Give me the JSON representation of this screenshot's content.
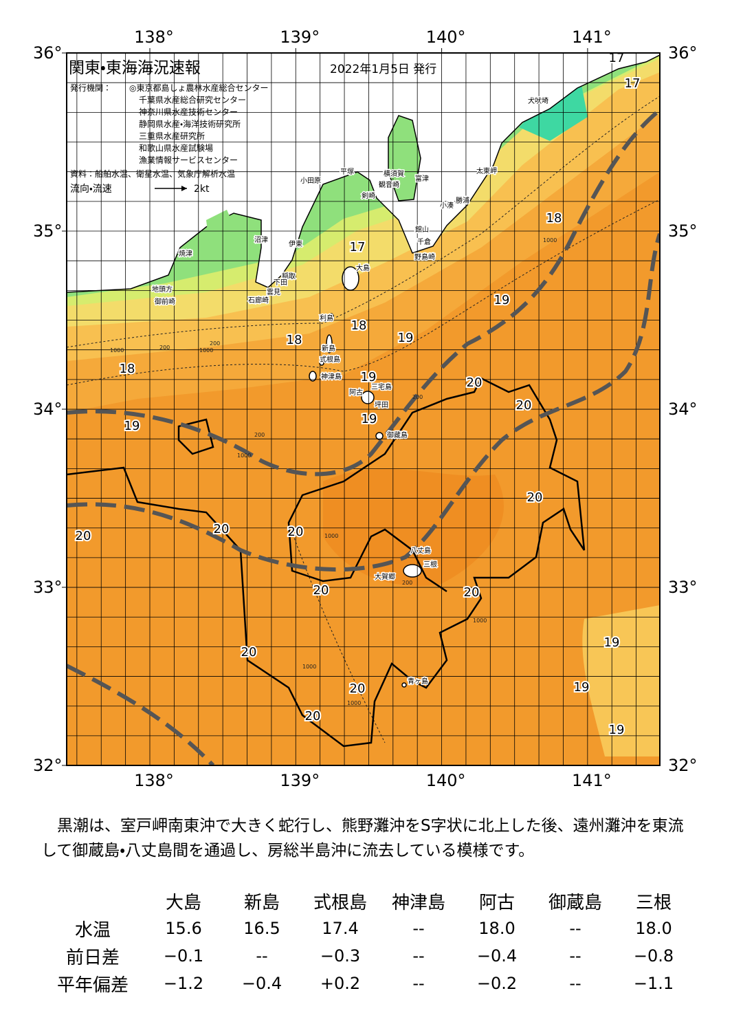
{
  "header": {
    "title": "関東・東海海況速報",
    "date": "2022年1月5日 発行",
    "agency_label": "発行機関：",
    "agencies": [
      "◎東京都島しょ農林水産総合センター",
      "千葉県水産総合研究センター",
      "神奈川県水産技術センター",
      "静岡県水産・海洋技術研究所",
      "三重県水産研究所",
      "和歌山県水産試験場",
      "漁業情報サービスセンター"
    ],
    "source": "資料：船舶水温、衛星水温、気象庁解析水温",
    "current_label": "流向・流速",
    "current_scale": "2kt"
  },
  "map": {
    "lon_ticks": [
      {
        "value": 138,
        "label": "138°"
      },
      {
        "value": 139,
        "label": "139°"
      },
      {
        "value": 140,
        "label": "140°"
      },
      {
        "value": 141,
        "label": "141°"
      }
    ],
    "lat_ticks": [
      {
        "value": 32,
        "label": "32°"
      },
      {
        "value": 33,
        "label": "33°"
      },
      {
        "value": 34,
        "label": "34°"
      },
      {
        "value": 35,
        "label": "35°"
      },
      {
        "value": 36,
        "label": "36°"
      }
    ],
    "isotherm_labels": [
      17,
      17,
      18,
      17,
      19,
      18,
      19,
      18,
      18,
      19,
      20,
      20,
      19,
      19,
      20,
      20,
      20,
      20,
      20,
      20,
      19,
      20,
      19,
      20,
      20,
      19
    ],
    "place_names": [
      "犬吠埼",
      "太東岬",
      "勝浦",
      "小湊",
      "館山",
      "千倉",
      "野島崎",
      "富津",
      "横須賀",
      "観音崎",
      "剣崎",
      "平塚",
      "小田原",
      "沼津",
      "伊東",
      "稲取",
      "下田",
      "石廊崎",
      "雲見",
      "焼津",
      "地頭方",
      "御前崎",
      "大島",
      "利島",
      "新島",
      "式根島",
      "神津島",
      "三宅島",
      "阿古",
      "坪田",
      "御蔵島",
      "八丈島",
      "三根",
      "大賀郷",
      "青ヶ島"
    ],
    "depth_labels": [
      "1000",
      "200",
      "200",
      "1000",
      "200",
      "1000",
      "1000",
      "200",
      "1000",
      "1000",
      "1000",
      "200",
      "1000"
    ]
  },
  "text": {
    "paragraph": "　黒潮は、室戸岬南東沖で大きく蛇行し、熊野灘沖をS字状に北上した後、遠州灘沖を東流して御蔵島・八丈島間を通過し、房総半島沖に流去している模様です。"
  },
  "table": {
    "columns": [
      "大島",
      "新島",
      "式根島",
      "神津島",
      "阿古",
      "御蔵島",
      "三根"
    ],
    "rows": [
      {
        "label": "水温",
        "values": [
          "15.6",
          "16.5",
          "17.4",
          "--",
          "18.0",
          "--",
          "18.0"
        ]
      },
      {
        "label": "前日差",
        "values": [
          "−0.1",
          "--",
          "−0.3",
          "--",
          "−0.4",
          "--",
          "−0.8"
        ]
      },
      {
        "label": "平年偏差",
        "values": [
          "−1.2",
          "−0.4",
          "+0.2",
          "--",
          "−0.2",
          "--",
          "−1.1"
        ]
      }
    ]
  }
}
